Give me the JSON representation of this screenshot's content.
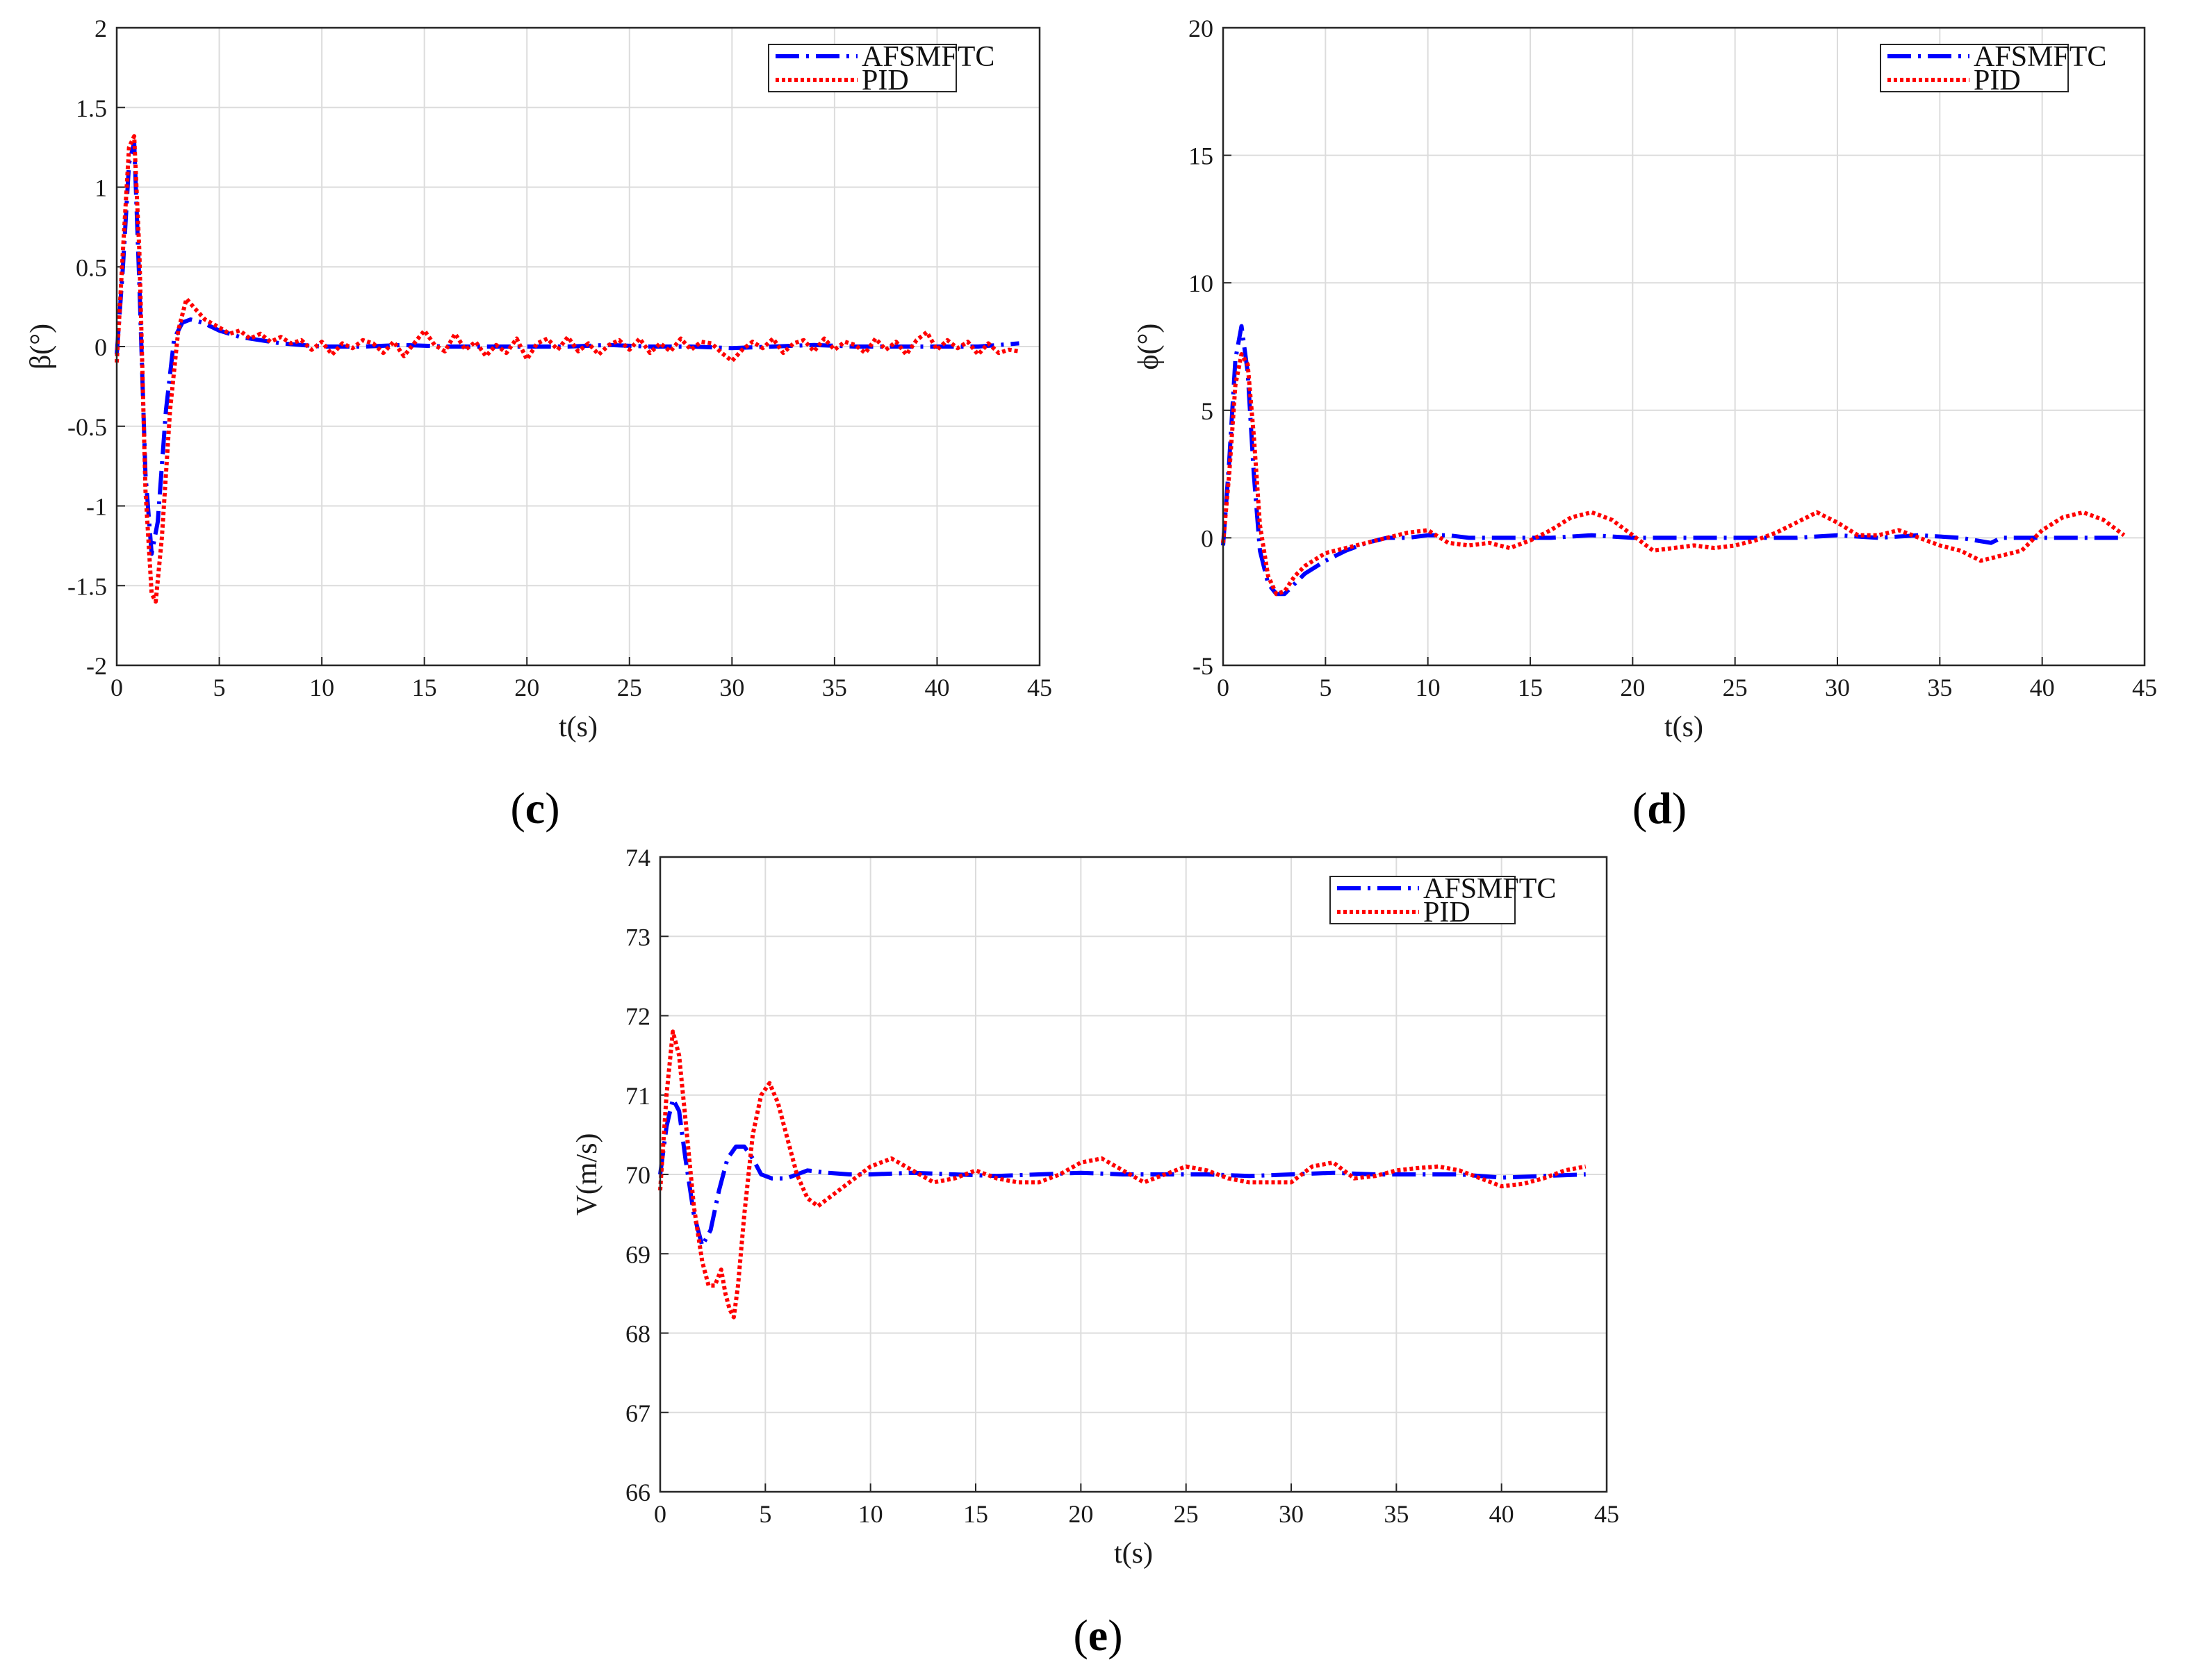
{
  "figure": {
    "panels": [
      {
        "id": "c",
        "label": "(c)",
        "letter": "c"
      },
      {
        "id": "d",
        "label": "(d)",
        "letter": "d"
      },
      {
        "id": "e",
        "label": "(e)",
        "letter": "e"
      }
    ]
  },
  "chart_data": [
    {
      "id": "c",
      "type": "line",
      "xlabel": "t(s)",
      "ylabel": "β(°)",
      "xlim": [
        0,
        45
      ],
      "ylim": [
        -2,
        2
      ],
      "xticks": [
        0,
        5,
        10,
        15,
        20,
        25,
        30,
        35,
        40,
        45
      ],
      "yticks": [
        -2,
        -1.5,
        -1,
        -0.5,
        0,
        0.5,
        1,
        1.5,
        2
      ],
      "grid": true,
      "legend": "top-right",
      "series": [
        {
          "name": "AFSMFTC",
          "color": "#0000ff",
          "style": "dash-dot",
          "x": [
            0,
            0.3,
            0.6,
            0.85,
            1.1,
            1.4,
            1.7,
            2.0,
            2.4,
            2.8,
            3.2,
            3.6,
            4.2,
            5,
            6,
            7,
            8,
            9,
            10,
            12,
            14,
            16,
            18,
            20,
            22,
            24,
            26,
            28,
            30,
            32,
            34,
            36,
            38,
            40,
            42,
            44
          ],
          "y": [
            -0.05,
            0.5,
            1.15,
            1.28,
            0.4,
            -0.8,
            -1.3,
            -1.1,
            -0.4,
            0.05,
            0.15,
            0.17,
            0.15,
            0.1,
            0.06,
            0.04,
            0.02,
            0.01,
            0,
            0,
            0.01,
            0,
            0,
            0,
            0,
            0.01,
            0,
            0,
            -0.01,
            0,
            0.01,
            0,
            0,
            0,
            0,
            0.02
          ]
        },
        {
          "name": "PID",
          "color": "#ff0000",
          "style": "dotted",
          "x": [
            0,
            0.3,
            0.6,
            0.85,
            1.1,
            1.4,
            1.7,
            1.9,
            2.2,
            2.6,
            3.0,
            3.4,
            3.8,
            4.3,
            5,
            5.5,
            6,
            6.5,
            7,
            7.5,
            8,
            8.5,
            9,
            9.5,
            10,
            10.5,
            11,
            11.5,
            12,
            12.5,
            13,
            13.5,
            14,
            14.5,
            15,
            15.5,
            16,
            16.5,
            17,
            17.5,
            18,
            18.5,
            19,
            19.5,
            20,
            20.5,
            21,
            21.5,
            22,
            22.5,
            23,
            23.5,
            24,
            24.5,
            25,
            25.5,
            26,
            26.5,
            27,
            27.5,
            28,
            28.5,
            29,
            29.5,
            30,
            30.5,
            31,
            31.5,
            32,
            32.5,
            33,
            33.5,
            34,
            34.5,
            35,
            35.5,
            36,
            36.5,
            37,
            37.5,
            38,
            38.5,
            39,
            39.5,
            40,
            40.5,
            41,
            41.5,
            42,
            42.5,
            43,
            43.5,
            44
          ],
          "y": [
            -0.1,
            0.6,
            1.25,
            1.32,
            0.6,
            -0.9,
            -1.55,
            -1.6,
            -1.2,
            -0.4,
            0.1,
            0.3,
            0.24,
            0.17,
            0.12,
            0.08,
            0.1,
            0.05,
            0.08,
            0.03,
            0.06,
            0.02,
            0.04,
            -0.02,
            0.03,
            -0.05,
            0.02,
            -0.01,
            0.04,
            0.02,
            -0.04,
            0.03,
            -0.06,
            0.02,
            0.1,
            0.01,
            -0.03,
            0.08,
            -0.02,
            0.03,
            -0.06,
            0.01,
            -0.04,
            0.05,
            -0.08,
            0.02,
            0.05,
            -0.02,
            0.06,
            -0.03,
            0.02,
            -0.05,
            0.01,
            0.04,
            -0.02,
            0.05,
            -0.04,
            0.02,
            -0.03,
            0.05,
            -0.02,
            0.03,
            0.02,
            -0.04,
            -0.09,
            -0.02,
            0.03,
            -0.01,
            0.05,
            -0.04,
            0.02,
            0.04,
            -0.03,
            0.05,
            -0.02,
            0.03,
            0.01,
            -0.04,
            0.05,
            -0.02,
            0.03,
            -0.05,
            0.04,
            0.09,
            -0.02,
            0.04,
            -0.01,
            0.03,
            -0.05,
            0.02,
            -0.04,
            -0.02,
            -0.03
          ]
        }
      ]
    },
    {
      "id": "d",
      "type": "line",
      "xlabel": "t(s)",
      "ylabel": "ϕ(°)",
      "xlim": [
        0,
        45
      ],
      "ylim": [
        -5,
        20
      ],
      "xticks": [
        0,
        5,
        10,
        15,
        20,
        25,
        30,
        35,
        40,
        45
      ],
      "yticks": [
        -5,
        0,
        5,
        10,
        15,
        20
      ],
      "grid": true,
      "legend": "top-right",
      "series": [
        {
          "name": "AFSMFTC",
          "color": "#0000ff",
          "style": "dash-dot",
          "x": [
            0,
            0.3,
            0.6,
            0.9,
            1.2,
            1.5,
            1.8,
            2.2,
            2.6,
            3.0,
            3.5,
            4.0,
            5,
            6,
            7,
            8,
            9,
            10,
            11,
            12,
            14,
            16,
            18,
            20,
            22,
            24,
            26,
            28,
            30,
            32,
            34,
            36,
            37.5,
            38,
            40,
            42,
            44
          ],
          "y": [
            -0.3,
            3,
            7,
            8.3,
            6.5,
            2.5,
            -0.5,
            -1.8,
            -2.2,
            -2.2,
            -1.8,
            -1.4,
            -0.9,
            -0.5,
            -0.2,
            0,
            0,
            0.1,
            0.1,
            0,
            0,
            0,
            0.1,
            0,
            0,
            0,
            0,
            0,
            0.1,
            0,
            0.1,
            0,
            -0.2,
            0,
            0,
            0,
            0
          ]
        },
        {
          "name": "PID",
          "color": "#ff0000",
          "style": "dotted",
          "x": [
            0,
            0.3,
            0.6,
            0.9,
            1.2,
            1.5,
            1.8,
            2.2,
            2.6,
            3.0,
            3.5,
            4.0,
            5,
            6,
            7,
            8,
            9,
            10,
            11,
            12,
            13,
            14,
            15,
            16,
            17,
            18,
            19,
            20,
            21,
            22,
            23,
            24,
            25,
            26,
            27,
            28,
            29,
            30,
            31,
            32,
            33,
            34,
            35,
            36,
            37,
            38,
            39,
            40,
            41,
            42,
            43,
            44
          ],
          "y": [
            -0.2,
            2.5,
            6,
            7.2,
            6.8,
            4,
            0.5,
            -1.5,
            -2.2,
            -2.1,
            -1.5,
            -1.1,
            -0.6,
            -0.4,
            -0.2,
            0,
            0.2,
            0.3,
            -0.2,
            -0.3,
            -0.2,
            -0.4,
            -0.1,
            0.3,
            0.8,
            1.0,
            0.7,
            0.1,
            -0.5,
            -0.4,
            -0.3,
            -0.4,
            -0.3,
            -0.1,
            0.2,
            0.6,
            1.0,
            0.6,
            0.1,
            0.1,
            0.3,
            0,
            -0.3,
            -0.5,
            -0.9,
            -0.7,
            -0.5,
            0.3,
            0.8,
            1.0,
            0.7,
            0.1
          ]
        }
      ]
    },
    {
      "id": "e",
      "type": "line",
      "xlabel": "t(s)",
      "ylabel": "V(m/s)",
      "xlim": [
        0,
        45
      ],
      "ylim": [
        66,
        74
      ],
      "xticks": [
        0,
        5,
        10,
        15,
        20,
        25,
        30,
        35,
        40,
        45
      ],
      "yticks": [
        66,
        67,
        68,
        69,
        70,
        71,
        72,
        73,
        74
      ],
      "grid": true,
      "legend": "top-right",
      "series": [
        {
          "name": "AFSMFTC",
          "color": "#0000ff",
          "style": "dash-dot",
          "x": [
            0,
            0.3,
            0.6,
            0.9,
            1.2,
            1.6,
            2.0,
            2.4,
            2.8,
            3.2,
            3.6,
            4.0,
            4.4,
            4.8,
            5.3,
            6,
            7,
            8,
            9,
            10,
            12,
            14,
            16,
            18,
            20,
            22,
            24,
            26,
            28,
            30,
            32,
            34,
            36,
            38,
            40,
            42,
            44
          ],
          "y": [
            70,
            70.6,
            70.95,
            70.8,
            70.2,
            69.5,
            69.1,
            69.3,
            69.8,
            70.2,
            70.35,
            70.35,
            70.2,
            70.0,
            69.95,
            69.95,
            70.05,
            70.02,
            70.0,
            70.0,
            70.02,
            70.0,
            69.98,
            70.0,
            70.02,
            70.0,
            70.0,
            70.0,
            69.98,
            70.0,
            70.02,
            70.0,
            70.0,
            70.0,
            69.96,
            69.98,
            70.0
          ]
        },
        {
          "name": "PID",
          "color": "#ff0000",
          "style": "dotted",
          "x": [
            0,
            0.3,
            0.6,
            0.9,
            1.2,
            1.6,
            2.0,
            2.3,
            2.6,
            2.9,
            3.1,
            3.3,
            3.5,
            3.7,
            4.0,
            4.4,
            4.8,
            5.2,
            5.6,
            6.0,
            6.5,
            7.0,
            7.5,
            8.0,
            9,
            10,
            11,
            12,
            13,
            14,
            15,
            16,
            17,
            18,
            19,
            20,
            21,
            22,
            23,
            24,
            25,
            26,
            27,
            28,
            29,
            30,
            31,
            32,
            33,
            34,
            35,
            36,
            37,
            38,
            39,
            40,
            41,
            42,
            43,
            44
          ],
          "y": [
            69.8,
            71.0,
            71.8,
            71.5,
            70.7,
            69.6,
            68.9,
            68.6,
            68.6,
            68.8,
            68.5,
            68.3,
            68.2,
            68.6,
            69.5,
            70.5,
            71.0,
            71.15,
            70.9,
            70.5,
            70.0,
            69.7,
            69.6,
            69.7,
            69.9,
            70.1,
            70.2,
            70.05,
            69.9,
            69.95,
            70.05,
            69.95,
            69.9,
            69.9,
            70.0,
            70.15,
            70.2,
            70.05,
            69.9,
            70.0,
            70.1,
            70.05,
            69.95,
            69.9,
            69.9,
            69.9,
            70.1,
            70.15,
            69.95,
            69.98,
            70.05,
            70.08,
            70.1,
            70.05,
            69.95,
            69.85,
            69.88,
            69.95,
            70.05,
            70.1
          ]
        }
      ]
    }
  ]
}
